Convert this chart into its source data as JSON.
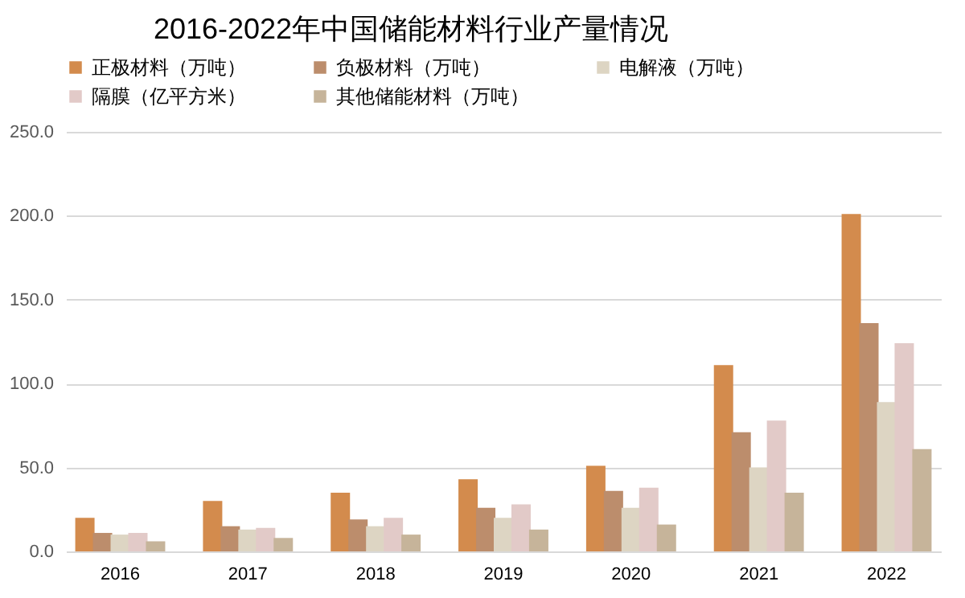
{
  "chart_data": {
    "type": "bar",
    "title": "2016-2022年中国储能材料行业产量情况",
    "categories": [
      "2016",
      "2017",
      "2018",
      "2019",
      "2020",
      "2021",
      "2022"
    ],
    "series": [
      {
        "name": "正极材料（万吨）",
        "color": "#d38b4d",
        "values": [
          20,
          30,
          35,
          43,
          51,
          111,
          201
        ]
      },
      {
        "name": "负极材料（万吨）",
        "color": "#bc8d6c",
        "values": [
          11,
          15,
          19,
          26,
          36,
          71,
          136
        ]
      },
      {
        "name": "电解液（万吨）",
        "color": "#ddd5c3",
        "values": [
          10,
          13,
          15,
          20,
          26,
          50,
          89
        ]
      },
      {
        "name": "隔膜（亿平方米）",
        "color": "#e2cac8",
        "values": [
          11,
          14,
          20,
          28,
          38,
          78,
          124
        ]
      },
      {
        "name": "其他储能材料（万吨）",
        "color": "#c6b49a",
        "values": [
          6,
          8,
          10,
          13,
          16,
          35,
          61
        ]
      }
    ],
    "ylim": [
      0,
      250
    ],
    "yticks": [
      {
        "value": 0,
        "label": "0.0"
      },
      {
        "value": 50,
        "label": "50.0"
      },
      {
        "value": 100,
        "label": "100.0"
      },
      {
        "value": 150,
        "label": "150.0"
      },
      {
        "value": 200,
        "label": "200.0"
      },
      {
        "value": 250,
        "label": "250.0"
      }
    ],
    "grid": "y",
    "legend": "top"
  }
}
